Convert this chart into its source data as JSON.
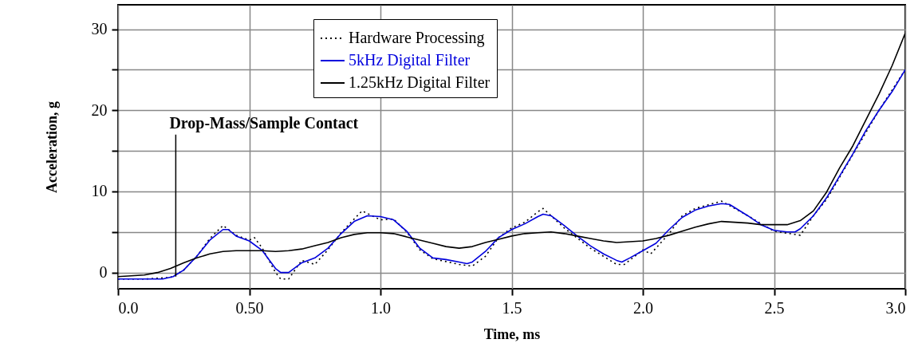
{
  "chart_data": {
    "type": "line",
    "xlabel": "Time, ms",
    "ylabel": "Acceleration, g",
    "xlim": [
      0,
      3.0
    ],
    "ylim": [
      -2,
      33
    ],
    "xticks": [
      {
        "value": 0,
        "label": "0.0"
      },
      {
        "value": 0.5,
        "label": "0.50"
      },
      {
        "value": 1.0,
        "label": "1.0"
      },
      {
        "value": 1.5,
        "label": "1.5"
      },
      {
        "value": 2.0,
        "label": "2.0"
      },
      {
        "value": 2.5,
        "label": "2.5"
      },
      {
        "value": 3.0,
        "label": "3.0"
      }
    ],
    "yticks": [
      0,
      {
        "value": 5,
        "label": null
      },
      10,
      {
        "value": 15,
        "label": null
      },
      20,
      {
        "value": 25,
        "label": null
      },
      30
    ],
    "grid": true,
    "legend": "top",
    "annotations": [
      {
        "text": "Drop-Mass/Sample Contact",
        "x": 0.22,
        "y": -0.5
      }
    ],
    "series": [
      {
        "name": "Hardware Processing",
        "color": "#000000",
        "line_style": "dotted",
        "x": [
          0,
          0.1,
          0.2,
          0.25,
          0.3,
          0.35,
          0.4,
          0.45,
          0.5,
          0.52,
          0.55,
          0.6,
          0.62,
          0.65,
          0.7,
          0.75,
          0.8,
          0.85,
          0.9,
          0.93,
          1.0,
          1.05,
          1.1,
          1.15,
          1.2,
          1.3,
          1.35,
          1.4,
          1.45,
          1.5,
          1.55,
          1.6,
          1.62,
          1.7,
          1.8,
          1.85,
          1.9,
          1.93,
          2.0,
          2.03,
          2.1,
          2.15,
          2.2,
          2.3,
          2.4,
          2.5,
          2.6,
          2.65,
          2.7,
          2.8,
          2.9,
          3.0
        ],
        "values": [
          -0.8,
          -0.8,
          -0.6,
          0.3,
          2.0,
          4.2,
          5.8,
          4.6,
          4.0,
          4.3,
          3.0,
          0.0,
          -0.8,
          -0.8,
          1.5,
          1.0,
          2.8,
          4.9,
          6.6,
          7.6,
          6.5,
          6.6,
          5.0,
          2.8,
          1.7,
          1.0,
          0.8,
          2.0,
          4.3,
          5.5,
          6.2,
          7.5,
          7.9,
          5.5,
          3.0,
          2.0,
          1.0,
          1.0,
          2.8,
          2.3,
          4.8,
          7.0,
          7.9,
          8.8,
          7.0,
          5.1,
          4.6,
          7.0,
          9.0,
          14.5,
          20.0,
          25.0
        ]
      },
      {
        "name": "5kHz Digital Filter",
        "color": "#0000dd",
        "line_style": "solid",
        "x": [
          0,
          0.1,
          0.17,
          0.21,
          0.25,
          0.3,
          0.35,
          0.4,
          0.42,
          0.45,
          0.5,
          0.55,
          0.6,
          0.62,
          0.65,
          0.7,
          0.75,
          0.8,
          0.85,
          0.9,
          0.95,
          1.0,
          1.05,
          1.1,
          1.15,
          1.2,
          1.25,
          1.3,
          1.33,
          1.35,
          1.4,
          1.45,
          1.5,
          1.55,
          1.6,
          1.62,
          1.65,
          1.7,
          1.75,
          1.8,
          1.85,
          1.9,
          1.92,
          1.95,
          2.0,
          2.05,
          2.1,
          2.15,
          2.2,
          2.25,
          2.3,
          2.33,
          2.35,
          2.4,
          2.45,
          2.5,
          2.55,
          2.58,
          2.6,
          2.65,
          2.7,
          2.75,
          2.8,
          2.85,
          2.9,
          2.95,
          3.0
        ],
        "values": [
          -0.8,
          -0.8,
          -0.8,
          -0.5,
          0.3,
          2.0,
          4.0,
          5.3,
          5.3,
          4.5,
          3.9,
          2.7,
          0.5,
          0.0,
          0.0,
          1.2,
          1.8,
          3.0,
          4.8,
          6.3,
          7.0,
          6.9,
          6.5,
          5.1,
          3.0,
          1.8,
          1.6,
          1.3,
          1.1,
          1.3,
          2.6,
          4.3,
          5.3,
          6.0,
          6.9,
          7.2,
          7.0,
          5.8,
          4.5,
          3.3,
          2.3,
          1.5,
          1.3,
          1.8,
          2.7,
          3.6,
          5.3,
          6.8,
          7.7,
          8.2,
          8.5,
          8.4,
          8.0,
          7.0,
          5.9,
          5.2,
          5.0,
          5.0,
          5.4,
          7.0,
          9.2,
          11.9,
          14.6,
          17.5,
          20.0,
          22.3,
          25.0
        ]
      },
      {
        "name": "1.25kHz Digital Filter",
        "color": "#000000",
        "line_style": "solid",
        "x": [
          0,
          0.1,
          0.15,
          0.2,
          0.25,
          0.3,
          0.35,
          0.4,
          0.45,
          0.5,
          0.55,
          0.6,
          0.65,
          0.7,
          0.75,
          0.8,
          0.85,
          0.9,
          0.95,
          1.0,
          1.05,
          1.1,
          1.15,
          1.2,
          1.25,
          1.3,
          1.35,
          1.4,
          1.45,
          1.5,
          1.55,
          1.6,
          1.65,
          1.7,
          1.75,
          1.8,
          1.85,
          1.9,
          1.95,
          2.0,
          2.05,
          2.1,
          2.15,
          2.2,
          2.25,
          2.3,
          2.35,
          2.4,
          2.45,
          2.5,
          2.55,
          2.6,
          2.65,
          2.7,
          2.75,
          2.8,
          2.85,
          2.9,
          2.95,
          3.0
        ],
        "values": [
          -0.5,
          -0.3,
          0.0,
          0.5,
          1.2,
          1.8,
          2.3,
          2.6,
          2.7,
          2.7,
          2.7,
          2.6,
          2.7,
          2.9,
          3.3,
          3.7,
          4.3,
          4.7,
          4.9,
          4.9,
          4.8,
          4.4,
          4.0,
          3.6,
          3.2,
          3.0,
          3.2,
          3.7,
          4.1,
          4.5,
          4.8,
          4.9,
          5.0,
          4.8,
          4.5,
          4.2,
          3.9,
          3.7,
          3.8,
          3.9,
          4.2,
          4.6,
          5.1,
          5.6,
          6.0,
          6.3,
          6.2,
          6.1,
          5.9,
          5.9,
          5.9,
          6.4,
          7.6,
          9.9,
          12.9,
          15.6,
          18.8,
          22.0,
          25.5,
          29.5
        ]
      }
    ]
  }
}
